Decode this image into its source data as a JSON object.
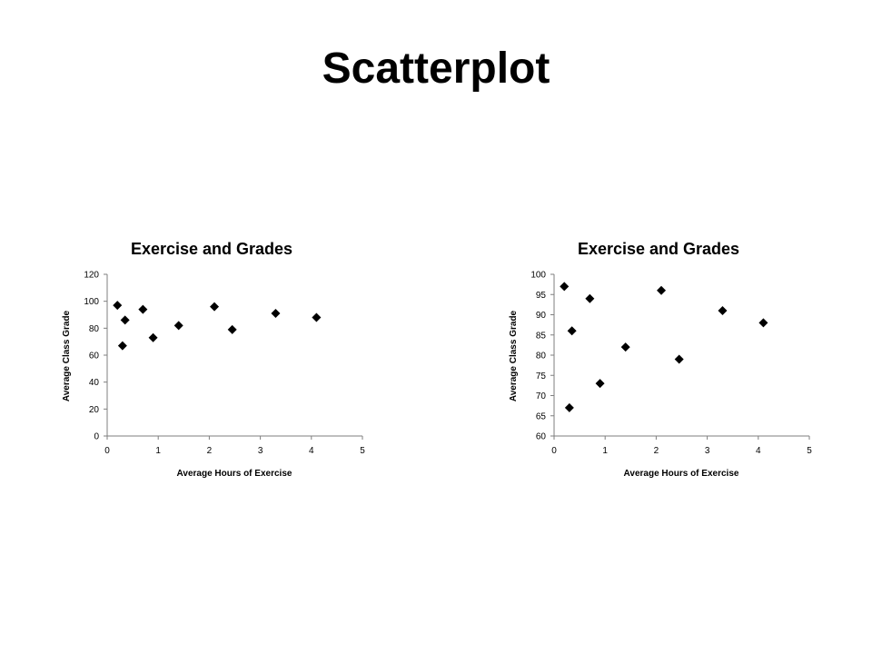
{
  "slide": {
    "title": "Scatterplot"
  },
  "chart_data": [
    {
      "type": "scatter",
      "title": "Exercise and Grades",
      "xlabel": "Average Hours of Exercise",
      "ylabel": "Average Class Grade",
      "xlim": [
        0,
        5
      ],
      "ylim": [
        0,
        120
      ],
      "xticks": [
        0,
        1,
        2,
        3,
        4,
        5
      ],
      "yticks": [
        0,
        20,
        40,
        60,
        80,
        100,
        120
      ],
      "grid": false,
      "legend": "none",
      "marker": "diamond",
      "marker_color": "#000000",
      "x": [
        0.2,
        0.3,
        0.35,
        0.7,
        0.9,
        1.4,
        2.1,
        2.45,
        3.3,
        4.1
      ],
      "y": [
        97,
        67,
        86,
        94,
        73,
        82,
        96,
        79,
        91,
        88
      ]
    },
    {
      "type": "scatter",
      "title": "Exercise and Grades",
      "xlabel": "Average Hours of Exercise",
      "ylabel": "Average Class Grade",
      "xlim": [
        0,
        5
      ],
      "ylim": [
        60,
        100
      ],
      "xticks": [
        0,
        1,
        2,
        3,
        4,
        5
      ],
      "yticks": [
        60,
        65,
        70,
        75,
        80,
        85,
        90,
        95,
        100
      ],
      "grid": false,
      "legend": "none",
      "marker": "diamond",
      "marker_color": "#000000",
      "x": [
        0.2,
        0.3,
        0.35,
        0.7,
        0.9,
        1.4,
        2.1,
        2.45,
        3.3,
        4.1
      ],
      "y": [
        97,
        67,
        86,
        94,
        73,
        82,
        96,
        79,
        91,
        88
      ]
    }
  ]
}
